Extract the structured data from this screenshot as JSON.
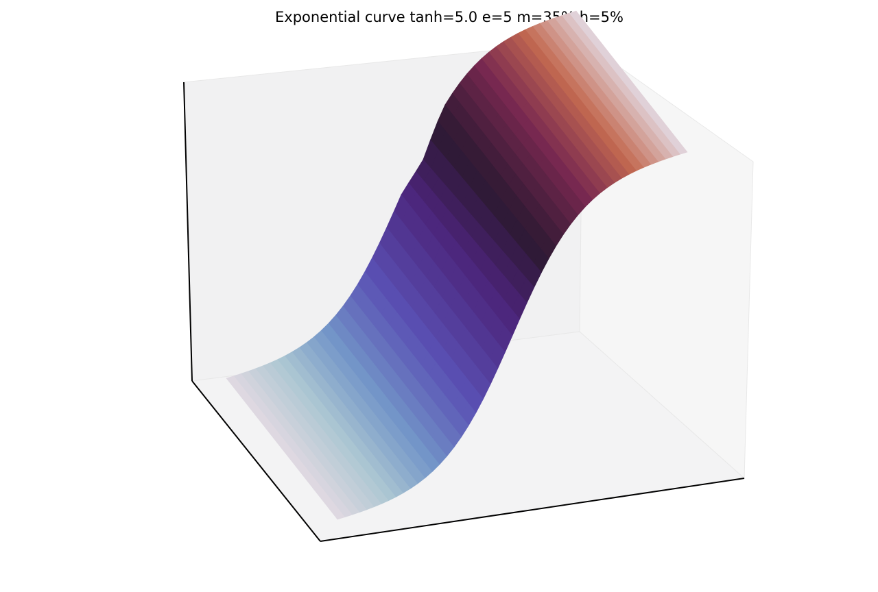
{
  "chart_data": {
    "type": "surface3d",
    "title": "Exponential curve tanh=5.0 e=5 m=35% h=5%",
    "xlabel": "",
    "ylabel": "",
    "zlabel": "",
    "tick_labels_visible": false,
    "grid": false,
    "colormap": "twilight",
    "colors": {
      "pane_back": "#f1f1f2",
      "pane_side": "#f6f6f6",
      "pane_floor": "#f3f3f4",
      "pane_edge": "#e6e6e6",
      "axis_line": "#000000"
    },
    "surface": {
      "shape": "tanh step curve across the sweep",
      "tanh": 5.0,
      "e": 5,
      "m_percent": 35,
      "h_percent": 5,
      "x_range": [
        0,
        1
      ],
      "y_range": [
        0,
        1
      ],
      "z_range": [
        0,
        1
      ],
      "notch_at_x": 0.56
    }
  }
}
